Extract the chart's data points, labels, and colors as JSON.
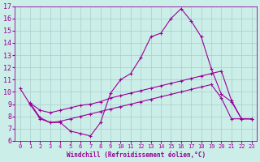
{
  "xlabel": "Windchill (Refroidissement éolien,°C)",
  "background_color": "#cceee8",
  "grid_color": "#aacccc",
  "line_color": "#990099",
  "xlim": [
    -0.5,
    23.5
  ],
  "ylim": [
    6,
    17
  ],
  "xticks": [
    0,
    1,
    2,
    3,
    4,
    5,
    6,
    7,
    8,
    9,
    10,
    11,
    12,
    13,
    14,
    15,
    16,
    17,
    18,
    19,
    20,
    21,
    22,
    23
  ],
  "yticks": [
    6,
    7,
    8,
    9,
    10,
    11,
    12,
    13,
    14,
    15,
    16,
    17
  ],
  "line1_x": [
    0,
    1,
    2,
    3,
    4,
    5,
    6,
    7,
    8,
    9,
    10,
    11,
    12,
    13,
    14,
    15,
    16,
    17,
    18,
    19,
    20,
    21,
    22,
    23
  ],
  "line1_y": [
    10.3,
    9.0,
    7.8,
    7.5,
    7.5,
    6.8,
    6.6,
    6.4,
    7.5,
    9.9,
    11.0,
    11.5,
    12.8,
    14.5,
    14.8,
    16.0,
    16.8,
    15.8,
    14.5,
    11.9,
    9.8,
    9.2,
    7.8,
    7.8
  ],
  "line2_x": [
    1,
    2,
    3,
    4,
    5,
    6,
    7,
    8,
    9,
    10,
    11,
    12,
    13,
    14,
    15,
    16,
    17,
    18,
    19,
    20,
    21,
    22,
    23
  ],
  "line2_y": [
    9.1,
    8.5,
    8.3,
    8.5,
    8.7,
    8.9,
    9.0,
    9.2,
    9.5,
    9.7,
    9.9,
    10.1,
    10.3,
    10.5,
    10.7,
    10.9,
    11.1,
    11.3,
    11.5,
    11.7,
    9.3,
    7.8,
    7.8
  ],
  "line3_x": [
    1,
    2,
    3,
    4,
    5,
    6,
    7,
    8,
    9,
    10,
    11,
    12,
    13,
    14,
    15,
    16,
    17,
    18,
    19,
    20,
    21,
    22,
    23
  ],
  "line3_y": [
    9.1,
    7.9,
    7.5,
    7.6,
    7.8,
    8.0,
    8.2,
    8.4,
    8.6,
    8.8,
    9.0,
    9.2,
    9.4,
    9.6,
    9.8,
    10.0,
    10.2,
    10.4,
    10.6,
    9.5,
    7.8,
    7.8,
    7.8
  ]
}
